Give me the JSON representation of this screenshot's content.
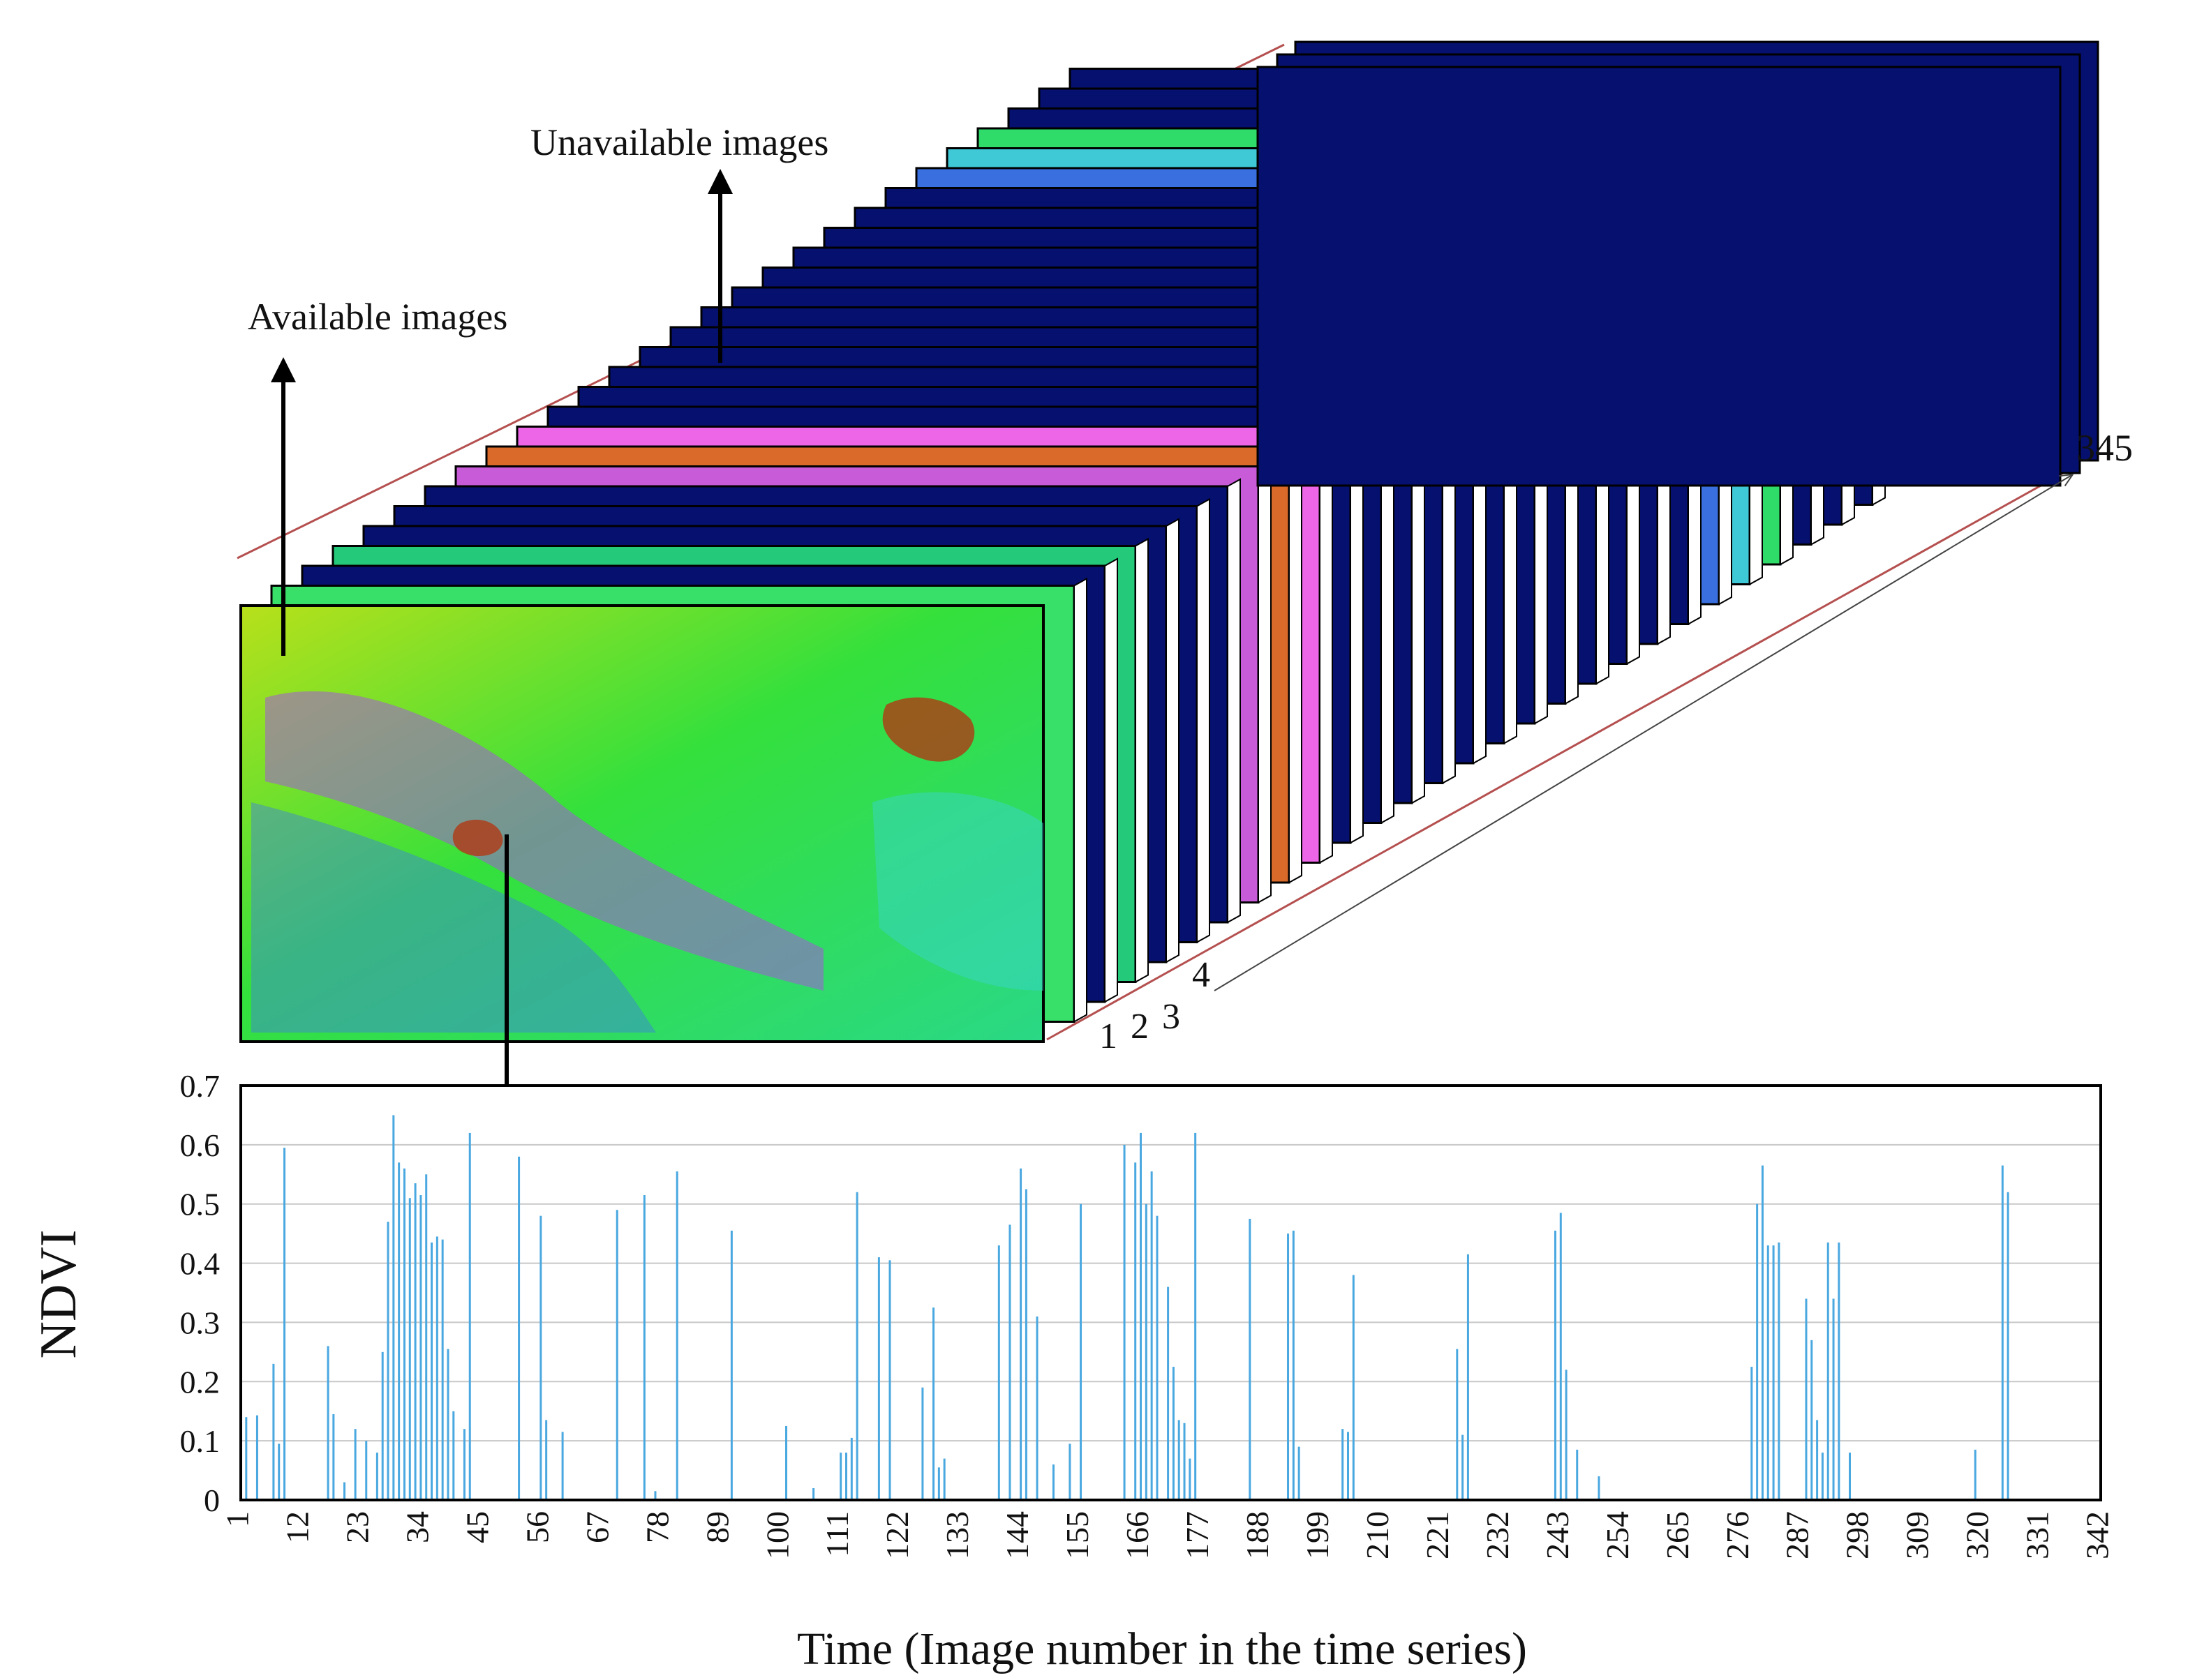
{
  "stack": {
    "label_available": "Available images",
    "label_unavailable": "Unavailable images",
    "depth_labels": [
      "1",
      "2",
      "3",
      "4"
    ],
    "end_label": "345",
    "frames": [
      {
        "index": 1,
        "kind": "available",
        "fill": "#38e06a"
      },
      {
        "index": 2,
        "kind": "unavailable",
        "fill": "#06106f"
      },
      {
        "index": 3,
        "kind": "available",
        "fill": "#25c97a"
      },
      {
        "index": 4,
        "kind": "unavailable",
        "fill": "#06106f"
      },
      {
        "index": 5,
        "kind": "unavailable",
        "fill": "#06106f"
      },
      {
        "index": 6,
        "kind": "unavailable",
        "fill": "#06106f"
      },
      {
        "index": 7,
        "kind": "available",
        "fill": "#c85bd8"
      },
      {
        "index": 8,
        "kind": "available",
        "fill": "#d96a2a"
      },
      {
        "index": 9,
        "kind": "available",
        "fill": "#ee66e8"
      },
      {
        "index": 10,
        "kind": "unavailable",
        "fill": "#06106f"
      },
      {
        "index": 11,
        "kind": "unavailable",
        "fill": "#06106f"
      },
      {
        "index": 12,
        "kind": "unavailable",
        "fill": "#06106f"
      },
      {
        "index": 13,
        "kind": "unavailable",
        "fill": "#06106f"
      },
      {
        "index": 14,
        "kind": "unavailable",
        "fill": "#06106f"
      },
      {
        "index": 15,
        "kind": "unavailable",
        "fill": "#06106f"
      },
      {
        "index": 16,
        "kind": "unavailable",
        "fill": "#06106f"
      },
      {
        "index": 17,
        "kind": "unavailable",
        "fill": "#06106f"
      },
      {
        "index": 18,
        "kind": "unavailable",
        "fill": "#06106f"
      },
      {
        "index": 19,
        "kind": "unavailable",
        "fill": "#06106f"
      },
      {
        "index": 20,
        "kind": "unavailable",
        "fill": "#06106f"
      },
      {
        "index": 21,
        "kind": "unavailable",
        "fill": "#06106f"
      },
      {
        "index": 22,
        "kind": "available",
        "fill": "#3a6fe0"
      },
      {
        "index": 23,
        "kind": "available",
        "fill": "#3fc9d6"
      },
      {
        "index": 24,
        "kind": "available",
        "fill": "#2fdc6a"
      },
      {
        "index": 25,
        "kind": "unavailable",
        "fill": "#06106f"
      },
      {
        "index": 26,
        "kind": "unavailable",
        "fill": "#06106f"
      },
      {
        "index": 27,
        "kind": "unavailable",
        "fill": "#06106f"
      }
    ]
  },
  "chart_data": {
    "type": "bar",
    "title": "",
    "xlabel": "Time (Image number in the time series)",
    "ylabel": "NDVI",
    "xlim": [
      1,
      342
    ],
    "ylim": [
      0,
      0.7
    ],
    "y_ticks": [
      "0",
      "0.1",
      "0.2",
      "0.3",
      "0.4",
      "0.5",
      "0.6",
      "0.7"
    ],
    "x_ticks": [
      "1",
      "12",
      "23",
      "34",
      "45",
      "56",
      "67",
      "78",
      "89",
      "100",
      "111",
      "122",
      "133",
      "144",
      "155",
      "166",
      "177",
      "188",
      "199",
      "210",
      "221",
      "232",
      "243",
      "254",
      "265",
      "276",
      "287",
      "298",
      "309",
      "320",
      "331",
      "342"
    ],
    "grid": true,
    "bar_color": "#4aa8e0",
    "x": [
      1,
      2,
      4,
      7,
      8,
      9,
      17,
      18,
      20,
      22,
      24,
      26,
      27,
      28,
      29,
      30,
      31,
      32,
      33,
      34,
      35,
      36,
      37,
      38,
      39,
      40,
      42,
      43,
      52,
      56,
      57,
      60,
      70,
      75,
      77,
      81,
      91,
      101,
      106,
      111,
      112,
      113,
      114,
      118,
      120,
      126,
      128,
      129,
      130,
      140,
      142,
      144,
      145,
      147,
      150,
      153,
      155,
      163,
      165,
      166,
      167,
      168,
      169,
      171,
      172,
      173,
      174,
      175,
      176,
      186,
      193,
      194,
      195,
      203,
      204,
      205,
      224,
      225,
      226,
      242,
      243,
      244,
      246,
      250,
      278,
      279,
      280,
      281,
      282,
      283,
      288,
      289,
      290,
      291,
      292,
      293,
      294,
      296,
      319,
      324,
      325
    ],
    "values": [
      0.145,
      0.14,
      0.143,
      0.23,
      0.095,
      0.595,
      0.26,
      0.145,
      0.03,
      0.12,
      0.1,
      0.08,
      0.25,
      0.47,
      0.65,
      0.57,
      0.56,
      0.51,
      0.535,
      0.515,
      0.55,
      0.435,
      0.445,
      0.44,
      0.255,
      0.15,
      0.12,
      0.62,
      0.58,
      0.48,
      0.135,
      0.115,
      0.49,
      0.515,
      0.015,
      0.555,
      0.455,
      0.125,
      0.02,
      0.08,
      0.08,
      0.105,
      0.52,
      0.41,
      0.405,
      0.19,
      0.325,
      0.055,
      0.07,
      0.43,
      0.465,
      0.56,
      0.525,
      0.31,
      0.06,
      0.095,
      0.5,
      0.6,
      0.57,
      0.62,
      0.5,
      0.555,
      0.48,
      0.36,
      0.225,
      0.135,
      0.13,
      0.07,
      0.62,
      0.475,
      0.45,
      0.455,
      0.09,
      0.12,
      0.115,
      0.38,
      0.255,
      0.11,
      0.415,
      0.455,
      0.485,
      0.22,
      0.085,
      0.04,
      0.225,
      0.5,
      0.565,
      0.43,
      0.43,
      0.435,
      0.34,
      0.27,
      0.135,
      0.08,
      0.435,
      0.34,
      0.435,
      0.08,
      0.085,
      0.565,
      0.52
    ]
  }
}
